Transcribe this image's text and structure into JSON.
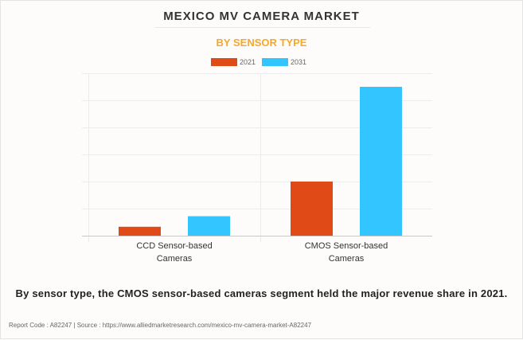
{
  "title": "MEXICO MV CAMERA MARKET",
  "subtitle": "BY SENSOR TYPE",
  "caption": "By sensor type, the CMOS sensor-based cameras segment held the major revenue share in 2021.",
  "footer": "Report Code : A82247  |  Source : https://www.alliedmarketresearch.com/mexico-mv-camera-market-A82247",
  "chart_data": {
    "type": "bar",
    "title": "MEXICO MV CAMERA MARKET",
    "subtitle": "BY SENSOR TYPE",
    "xlabel": "",
    "ylabel": "",
    "y_tick_labels_shown": false,
    "y_units": "relative (gridline units, axis unlabeled)",
    "ylim": [
      0,
      6
    ],
    "grid": true,
    "legend_position": "top-center",
    "categories": [
      "CCD Sensor-based Cameras",
      "CMOS Sensor-based Cameras"
    ],
    "category_lines": [
      [
        "CCD Sensor-based",
        "Cameras"
      ],
      [
        "CMOS Sensor-based",
        "Cameras"
      ]
    ],
    "series": [
      {
        "name": "2021",
        "color": "#e04a17",
        "values": [
          0.33,
          2.0
        ]
      },
      {
        "name": "2031",
        "color": "#33c5ff",
        "values": [
          0.72,
          5.5
        ]
      }
    ]
  }
}
